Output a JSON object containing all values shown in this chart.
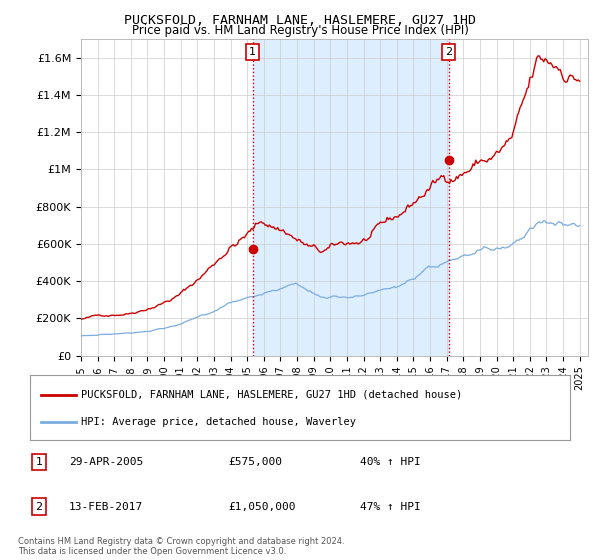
{
  "title": "PUCKSFOLD, FARNHAM LANE, HASLEMERE, GU27 1HD",
  "subtitle": "Price paid vs. HM Land Registry's House Price Index (HPI)",
  "ylim": [
    0,
    1700000
  ],
  "yticks": [
    0,
    200000,
    400000,
    600000,
    800000,
    1000000,
    1200000,
    1400000,
    1600000
  ],
  "ytick_labels": [
    "£0",
    "£200K",
    "£400K",
    "£600K",
    "£800K",
    "£1M",
    "£1.2M",
    "£1.4M",
    "£1.6M"
  ],
  "xstart_year": 1995,
  "xend_year": 2025,
  "red_line_color": "#cc0000",
  "blue_line_color": "#7aade0",
  "shade_color": "#ddeeff",
  "transaction1_x": 2005.33,
  "transaction1_price": 575000,
  "transaction2_x": 2017.12,
  "transaction2_price": 1050000,
  "vline_color": "#cc0000",
  "grid_color": "#cccccc",
  "background_color": "#ffffff",
  "legend_red_label": "PUCKSFOLD, FARNHAM LANE, HASLEMERE, GU27 1HD (detached house)",
  "legend_blue_label": "HPI: Average price, detached house, Waverley",
  "footer_line1": "Contains HM Land Registry data © Crown copyright and database right 2024.",
  "footer_line2": "This data is licensed under the Open Government Licence v3.0.",
  "table_row1": [
    "1",
    "29-APR-2005",
    "£575,000",
    "40% ↑ HPI"
  ],
  "table_row2": [
    "2",
    "13-FEB-2017",
    "£1,050,000",
    "47% ↑ HPI"
  ]
}
